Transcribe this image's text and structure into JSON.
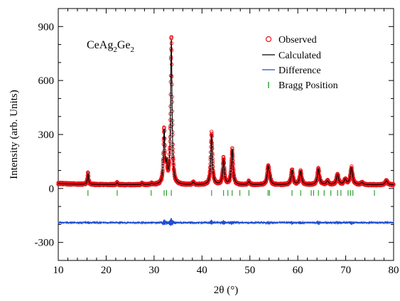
{
  "chart_data": {
    "type": "line",
    "title": {
      "main": "CeAg",
      "sub1": "2",
      "mid": "Ge",
      "sub2": "2"
    },
    "xlabel": "2θ (°)",
    "ylabel": "Intensity (arb. Units)",
    "xlim": [
      10,
      80
    ],
    "ylim": [
      -400,
      1000
    ],
    "xticks": [
      10,
      20,
      30,
      40,
      50,
      60,
      70,
      80
    ],
    "yticks": [
      -300,
      0,
      300,
      600,
      900
    ],
    "grid": false,
    "legend_placement": "top-right",
    "legend": [
      {
        "label": "Observed",
        "marker": "open-circle",
        "color": "#e8141a"
      },
      {
        "label": "Calculated",
        "marker": "line",
        "color": "#000000"
      },
      {
        "label": "Difference",
        "marker": "line",
        "color": "#1f4fd0"
      },
      {
        "label": "Bragg Position",
        "marker": "tick",
        "color": "#2aa02a"
      }
    ],
    "background": 20,
    "difference_offset": -190,
    "peaks": [
      {
        "x": 16.2,
        "y": 62
      },
      {
        "x": 22.3,
        "y": 10
      },
      {
        "x": 27.5,
        "y": 8
      },
      {
        "x": 29.5,
        "y": 6
      },
      {
        "x": 32.1,
        "y": 290
      },
      {
        "x": 32.6,
        "y": 90
      },
      {
        "x": 33.6,
        "y": 800
      },
      {
        "x": 38.2,
        "y": 14
      },
      {
        "x": 42.0,
        "y": 280
      },
      {
        "x": 44.5,
        "y": 140
      },
      {
        "x": 46.3,
        "y": 195
      },
      {
        "x": 49.8,
        "y": 18
      },
      {
        "x": 53.8,
        "y": 92
      },
      {
        "x": 54.1,
        "y": 35
      },
      {
        "x": 58.8,
        "y": 82
      },
      {
        "x": 60.6,
        "y": 74
      },
      {
        "x": 64.3,
        "y": 87
      },
      {
        "x": 66.2,
        "y": 20
      },
      {
        "x": 68.3,
        "y": 55
      },
      {
        "x": 69.9,
        "y": 28
      },
      {
        "x": 71.2,
        "y": 95
      },
      {
        "x": 73.4,
        "y": 12
      },
      {
        "x": 78.5,
        "y": 22
      }
    ],
    "bragg_positions": [
      16.2,
      22.3,
      29.4,
      32.1,
      32.6,
      33.6,
      42.0,
      44.5,
      45.4,
      46.3,
      47.9,
      49.8,
      53.8,
      54.1,
      58.8,
      60.6,
      62.8,
      63.3,
      64.3,
      65.5,
      66.9,
      68.3,
      69.0,
      70.5,
      71.0,
      71.5,
      76.0
    ],
    "bragg_y": -25,
    "colors": {
      "observed": "#e8141a",
      "calculated": "#000000",
      "difference": "#1f4fd0",
      "bragg": "#2aa02a"
    }
  }
}
